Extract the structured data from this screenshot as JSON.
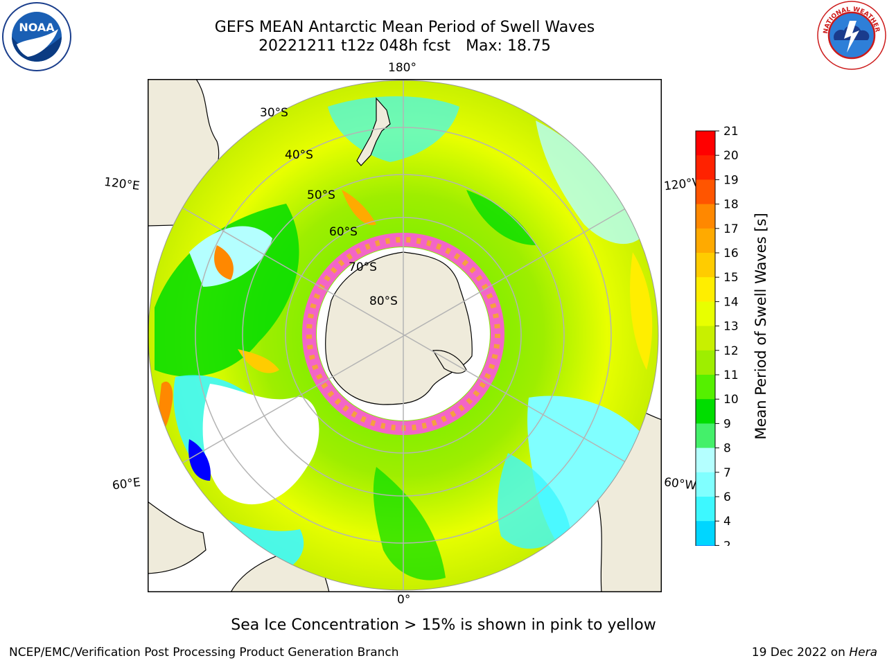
{
  "header": {
    "title_line1": "GEFS MEAN Antarctic Mean Period of Swell Waves",
    "title_run": "20221211 t12z 048h fcst",
    "title_max": "Max: 18.75"
  },
  "logos": {
    "left": "noaa-logo",
    "right": "national-weather-service-logo",
    "left_lettering": [
      "NOAA",
      "NATIONAL OCEANIC AND ATMOSPHERIC ADMINISTRATION",
      "U.S. DEPARTMENT OF COMMERCE"
    ],
    "right_lettering": "NATIONAL WEATHER SERVICE"
  },
  "map": {
    "projection": "south-polar-stereographic",
    "longitude_labels": {
      "top": "180°",
      "bottom": "0°",
      "upper_left": "120°E",
      "lower_left": "60°E",
      "upper_right": "120°W",
      "lower_right": "60°W"
    },
    "latitude_labels": [
      "30°S",
      "40°S",
      "50°S",
      "60°S",
      "70°S",
      "80°S"
    ],
    "colors": {
      "land": "#efebdb",
      "ice_pink": "#ff55dd",
      "ice_orange": "#f5a040",
      "grid": "#b4b4b4"
    }
  },
  "colorbar": {
    "label": "Mean Period of Swell Waves [s]",
    "ticks": [
      "2",
      "4",
      "6",
      "7",
      "8",
      "9",
      "10",
      "11",
      "12",
      "13",
      "14",
      "15",
      "16",
      "17",
      "18",
      "19",
      "20",
      "21"
    ],
    "colors": [
      "#0050ff",
      "#00d6ff",
      "#3df8ff",
      "#80ffff",
      "#b4ffff",
      "#44f06a",
      "#00dd00",
      "#55f000",
      "#9eee00",
      "#c8f000",
      "#e8ff00",
      "#ffee00",
      "#ffcc00",
      "#ffaa00",
      "#ff8800",
      "#ff5500",
      "#ff2200",
      "#ff0000"
    ],
    "extend_color": "#0000ff"
  },
  "caption": "Sea Ice Concentration > 15% is shown in pink to yellow",
  "footer": {
    "left": "NCEP/EMC/Verification Post Processing Product Generation Branch",
    "date": "19 Dec 2022 on",
    "host": "Hera"
  }
}
